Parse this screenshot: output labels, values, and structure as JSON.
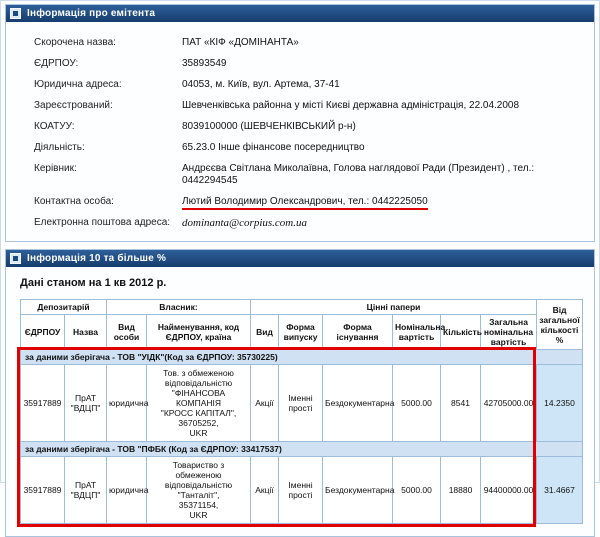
{
  "issuer": {
    "title": "Інформація про емітента",
    "rows": [
      {
        "label": "Скорочена назва:",
        "value": "ПАТ «КІФ «ДОМІНАНТА»"
      },
      {
        "label": "ЄДРПОУ:",
        "value": "35893549"
      },
      {
        "label": "Юридична адреса:",
        "value": "04053, м. Київ, вул. Артема, 37-41"
      },
      {
        "label": "Зареєстрований:",
        "value": "Шевченківська районна у місті Києві державна адміністрація, 22.04.2008"
      },
      {
        "label": "КОАТУУ:",
        "value": "8039100000 (ШЕВЧЕНКІВСЬКИЙ р-н)"
      },
      {
        "label": "Діяльність:",
        "value": "65.23.0 Інше фінансове посередництво"
      },
      {
        "label": "Керівник:",
        "value": "Андрєєва Світлана Миколаївна, Голова наглядової Ради (Президент) , тел.: 0442294545"
      },
      {
        "label": "Контактна особа:",
        "value": "Лютий Володимир Олександрович, тел.: 0442225050"
      },
      {
        "label": "Електронна поштова адреса:",
        "value": "dominanta@corpius.com.ua"
      }
    ]
  },
  "holders": {
    "title": "Інформація 10 та більше %",
    "period": "Дані станом на 1 кв 2012 р.",
    "table": {
      "h1": {
        "dep": "Депозитарій",
        "owner": "Власник:",
        "sec": "Цінні папери",
        "pct": "Від загальної кількості %"
      },
      "h2": [
        "ЄДРПОУ",
        "Назва",
        "Вид особи",
        "Найменування, код ЄДРПОУ, країна",
        "Вид",
        "Форма випуску",
        "Форма існування",
        "Номінальна вартість",
        "Кількість",
        "Загальна номінальна вартість"
      ],
      "note1": "за даними зберігача - ТОВ \"УІДК\"(Код за ЄДРПОУ: 35730225)",
      "note2": "за даними зберігача - ТОВ \"ПФБК (Код за ЄДРПОУ: 33417537)",
      "row1": [
        "35917889",
        "ПрАТ \"ВДЦП\"",
        "юридична",
        "Тов. з обмеженою\nвідповідальністю\n\"ФІНАНСОВА КОМПАНІЯ\n\"КРОСС КАПІТАЛ\",\n36705252,\nUKR",
        "Акції",
        "Іменні прості",
        "Бездокументарна",
        "5000.00",
        "8541",
        "42705000.00",
        "14.2350"
      ],
      "row2": [
        "35917889",
        "ПрАТ \"ВДЦП\"",
        "юридична",
        "Товариство з обмеженою\nвідповідальністю \"Танталіт\",\n35371154,\nUKR",
        "Акції",
        "Іменні прості",
        "Бездокументарна",
        "5000.00",
        "18880",
        "94400000.00",
        "31.4667"
      ]
    }
  },
  "colors": {
    "header_grad_top": "#2e5f99",
    "header_grad_bottom": "#163d6e",
    "panel_border": "#aac3dd",
    "note_bg": "#cfe1f2",
    "pct_bg": "#cde5f6",
    "annotation": "#e00000"
  }
}
